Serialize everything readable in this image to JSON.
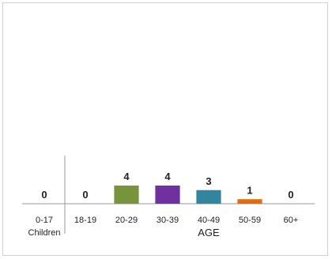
{
  "chart_data": {
    "type": "bar",
    "categories": [
      "0-17",
      "18-19",
      "20-29",
      "30-39",
      "40-49",
      "50-59",
      "60+"
    ],
    "category_sublabels": [
      "Children",
      "",
      "",
      "",
      "",
      "",
      ""
    ],
    "values": [
      0,
      0,
      4,
      4,
      3,
      1,
      0
    ],
    "data_labels": [
      "0",
      "0",
      "4",
      "4",
      "3",
      "1",
      "0"
    ],
    "bar_colors": [
      "#7f7f7f",
      "#7f7f7f",
      "#77933c",
      "#7030a0",
      "#31859c",
      "#e46c0a",
      "#7f7f7f"
    ],
    "xlabel": "AGE",
    "ylim": [
      0,
      12
    ],
    "grid": false,
    "legend": "none",
    "separator_after_category": "0-17"
  }
}
